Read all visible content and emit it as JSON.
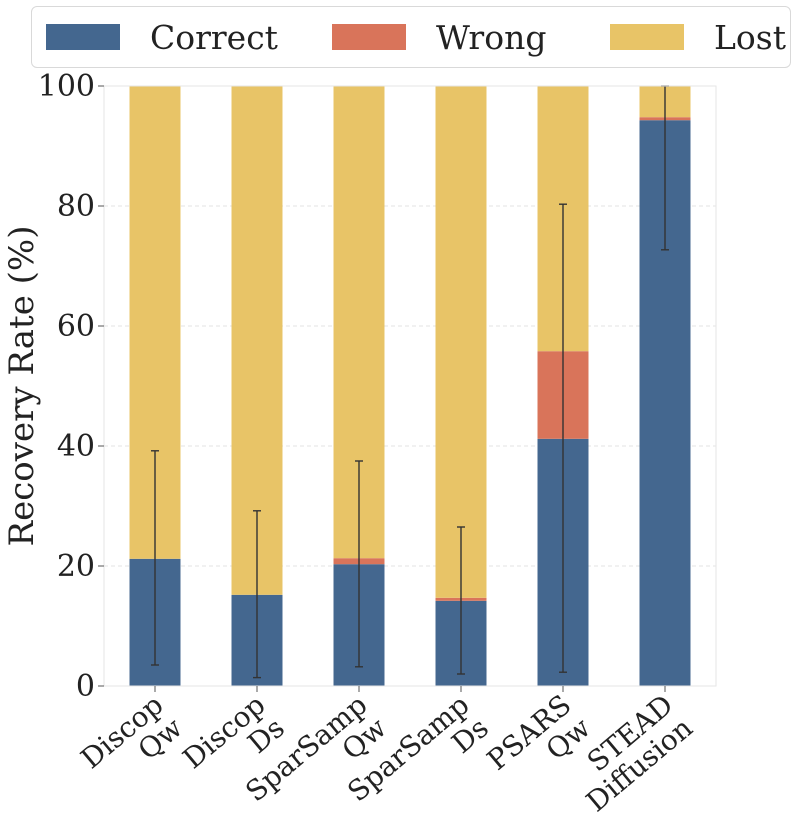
{
  "chart_data": {
    "type": "bar",
    "stacked": true,
    "categories": [
      [
        "Discop",
        "Qw"
      ],
      [
        "Discop",
        "Ds"
      ],
      [
        "SparSamp",
        "Qw"
      ],
      [
        "SparSamp",
        "Ds"
      ],
      [
        "PSARS",
        "Qw"
      ],
      [
        "STEAD",
        "Diffusion"
      ]
    ],
    "series": [
      {
        "name": "Correct",
        "color": "#44678f",
        "values": [
          21.2,
          15.2,
          20.3,
          14.2,
          41.2,
          94.3
        ]
      },
      {
        "name": "Wrong",
        "color": "#d9745a",
        "values": [
          0.0,
          0.0,
          1.0,
          0.5,
          14.6,
          0.5
        ]
      },
      {
        "name": "Lost",
        "color": "#e8c467",
        "values": [
          78.8,
          84.8,
          78.7,
          85.3,
          44.2,
          5.2
        ]
      }
    ],
    "error_bars": [
      {
        "low": 3.5,
        "high": 39.2
      },
      {
        "low": 1.4,
        "high": 29.2
      },
      {
        "low": 3.2,
        "high": 37.5
      },
      {
        "low": 2.0,
        "high": 26.5
      },
      {
        "low": 2.3,
        "high": 80.3
      },
      {
        "low": 72.7,
        "high": 100.0
      }
    ],
    "ylabel": "Recovery Rate (%)",
    "xlabel": "",
    "ylim": [
      0,
      100
    ],
    "yticks": [
      0,
      20,
      40,
      60,
      80,
      100
    ],
    "grid": "horizontal dashed",
    "legend_position": "top"
  }
}
